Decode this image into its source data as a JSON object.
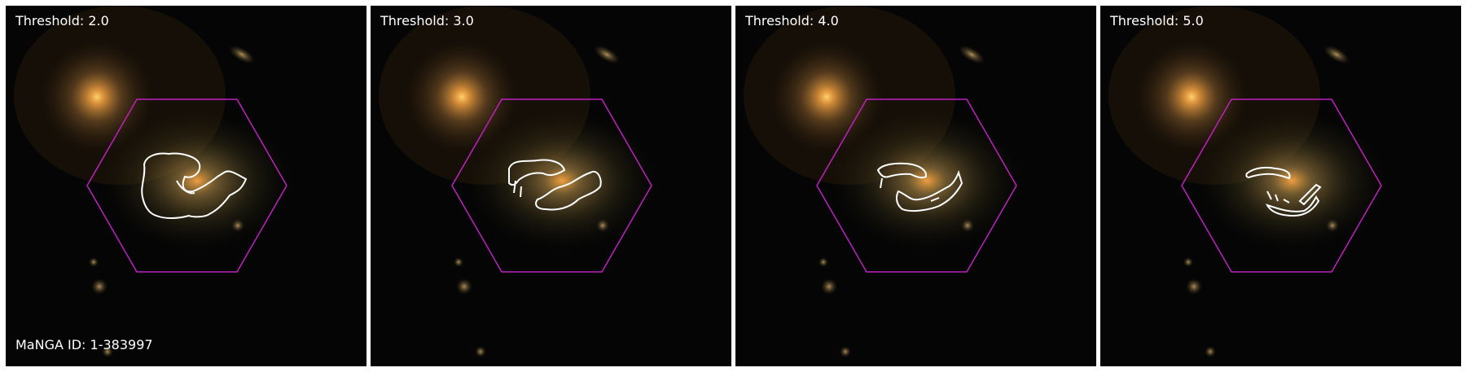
{
  "panels": [
    {
      "threshold_label": "Threshold: 2.0"
    },
    {
      "threshold_label": "Threshold: 3.0"
    },
    {
      "threshold_label": "Threshold: 4.0"
    },
    {
      "threshold_label": "Threshold: 5.0"
    }
  ],
  "manga_id_label": "MaNGA ID: 1-383997",
  "colors": {
    "hexagon": "#c020c0",
    "contour": "#ffffff",
    "background": "#050505"
  }
}
